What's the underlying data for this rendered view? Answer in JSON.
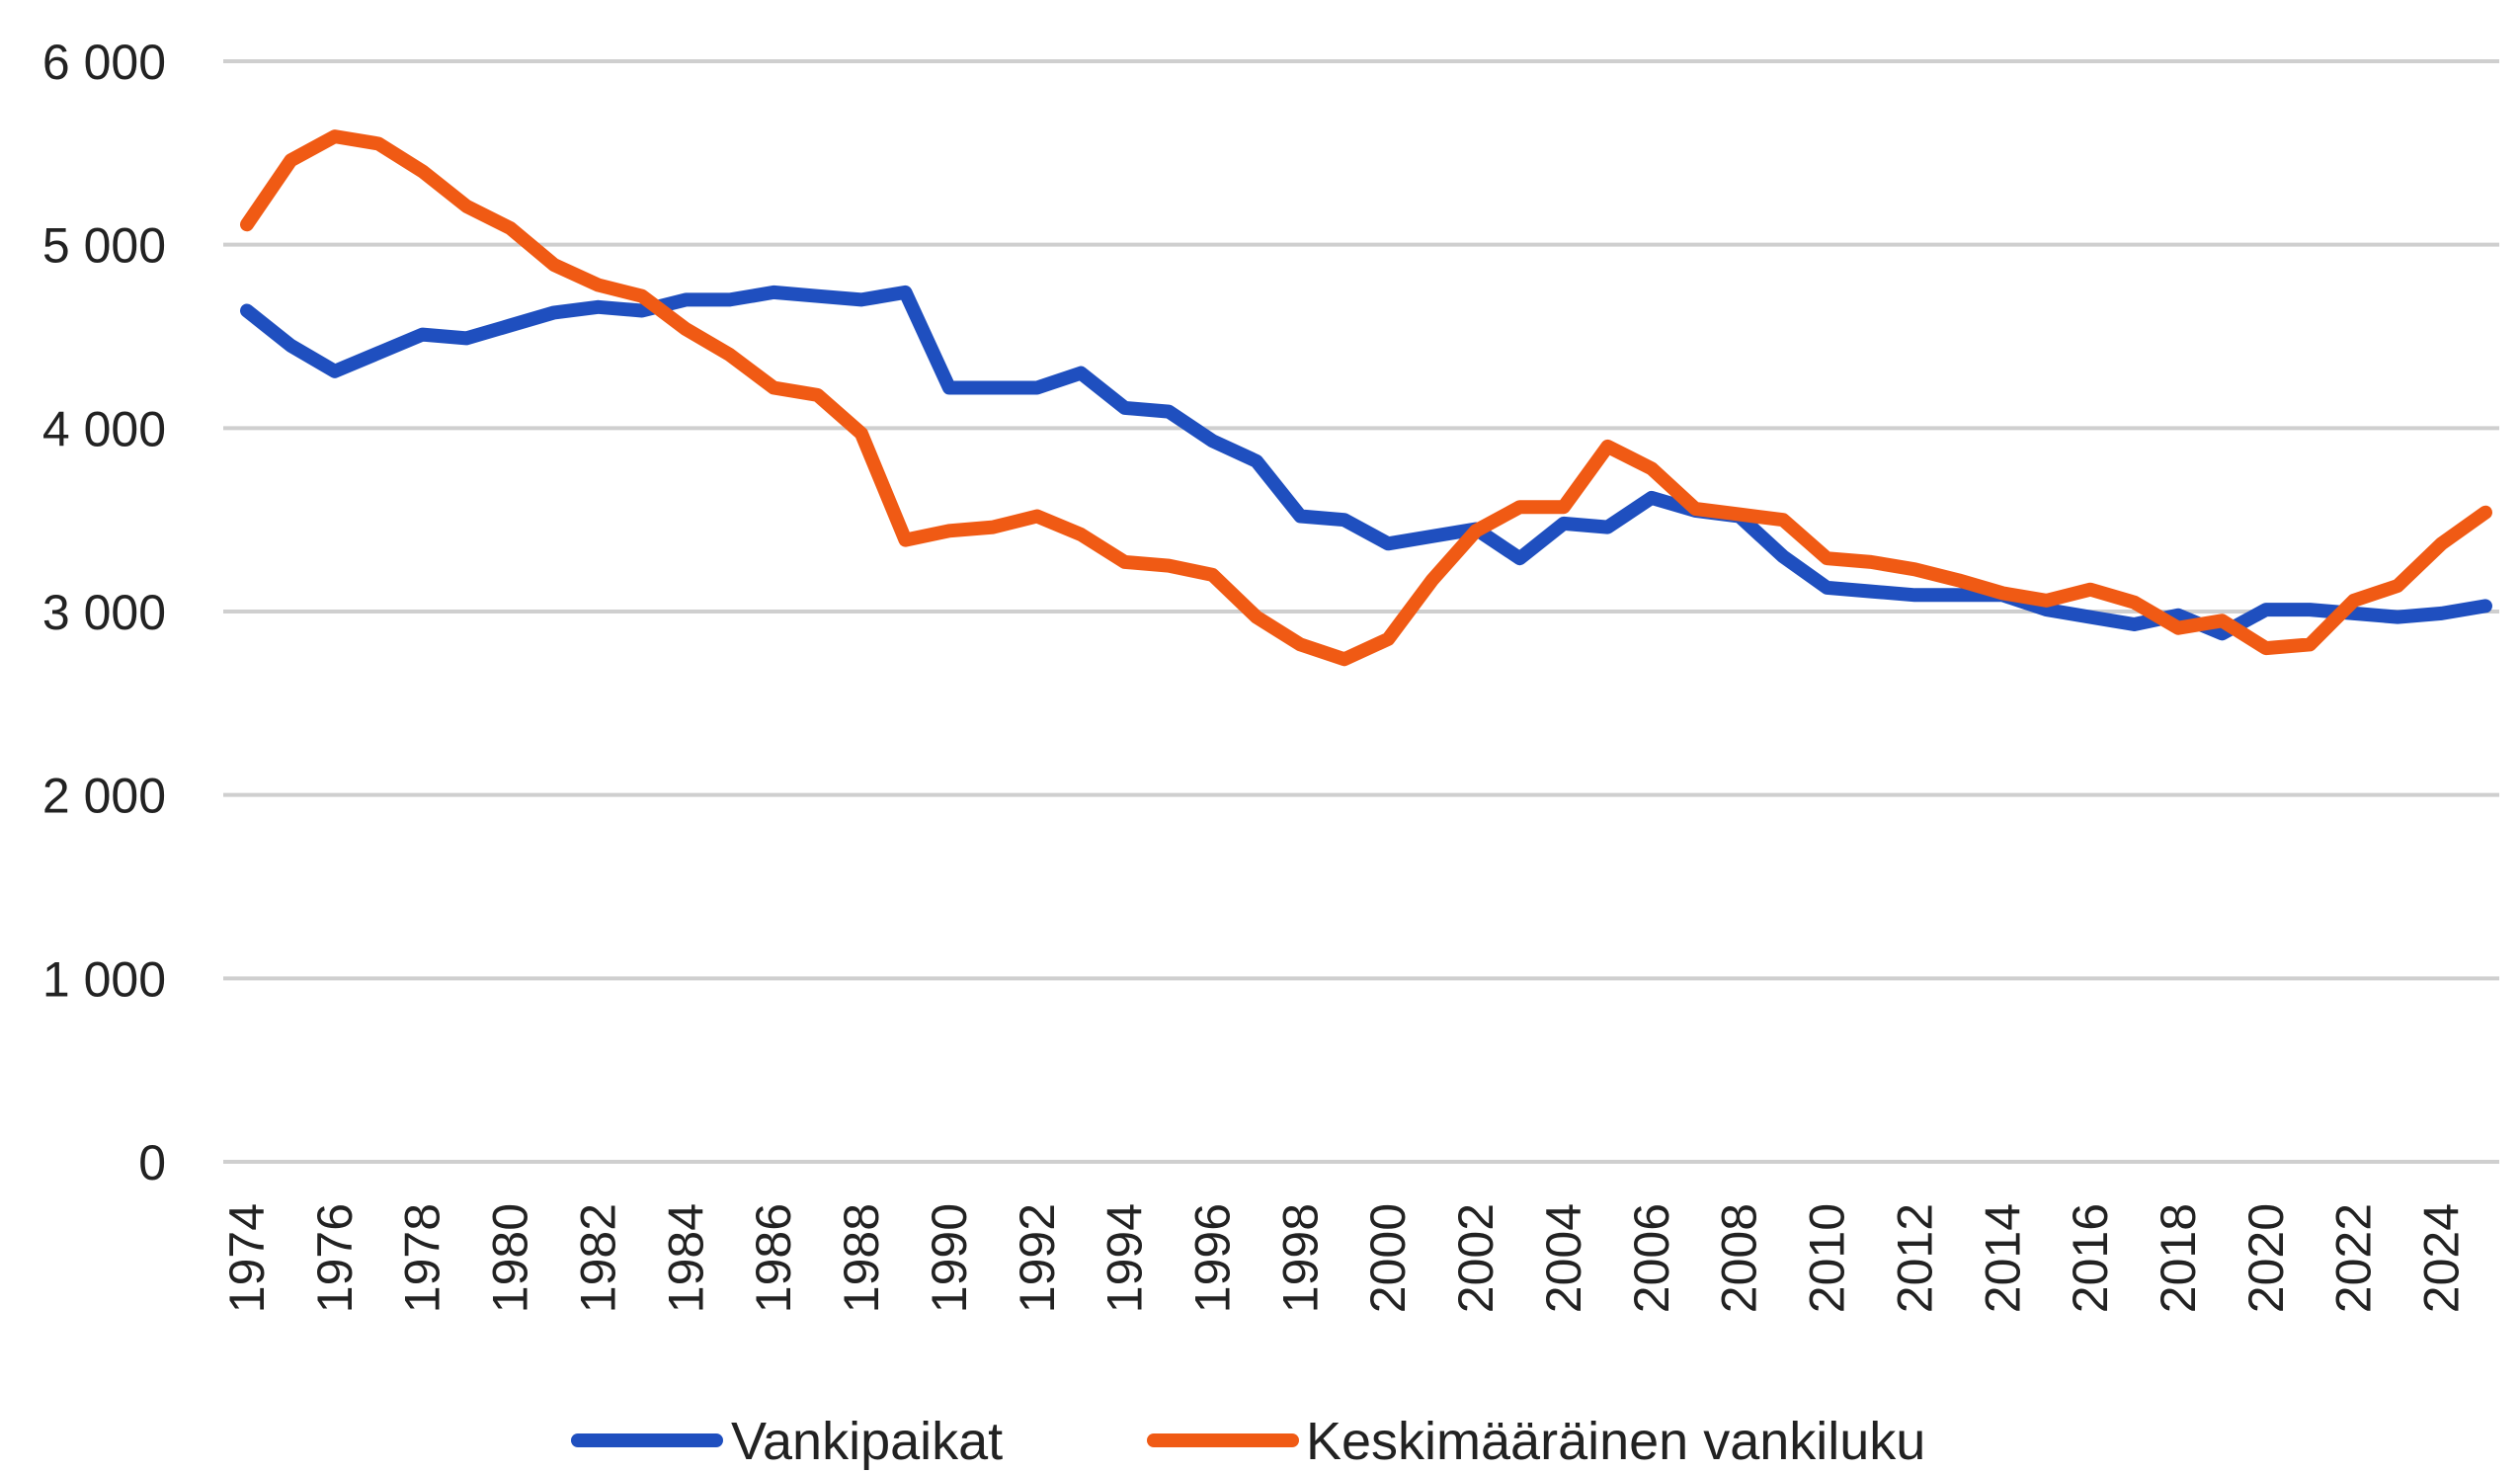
{
  "chart_data": {
    "type": "line",
    "title": "",
    "xlabel": "",
    "ylabel": "",
    "ylim": [
      0,
      6000
    ],
    "yticks": [
      0,
      1000,
      2000,
      3000,
      4000,
      5000,
      6000
    ],
    "ytick_labels": [
      "0",
      "1 000",
      "2 000",
      "3 000",
      "4 000",
      "5 000",
      "6 000"
    ],
    "x": [
      1974,
      1975,
      1976,
      1977,
      1978,
      1979,
      1980,
      1981,
      1982,
      1983,
      1984,
      1985,
      1986,
      1987,
      1988,
      1989,
      1990,
      1991,
      1992,
      1993,
      1994,
      1995,
      1996,
      1997,
      1998,
      1999,
      2000,
      2001,
      2002,
      2003,
      2004,
      2005,
      2006,
      2007,
      2008,
      2009,
      2010,
      2011,
      2012,
      2013,
      2014,
      2015,
      2016,
      2017,
      2018,
      2019,
      2020,
      2021,
      2022,
      2023,
      2024,
      2025
    ],
    "xtick_labels": [
      "1974",
      "1976",
      "1978",
      "1980",
      "1982",
      "1984",
      "1986",
      "1988",
      "1990",
      "1992",
      "1994",
      "1996",
      "1998",
      "2000",
      "2002",
      "2004",
      "2006",
      "2008",
      "2010",
      "2012",
      "2014",
      "2016",
      "2018",
      "2020",
      "2022",
      "2024"
    ],
    "grid": true,
    "legend_position": "bottom",
    "series": [
      {
        "name": "Vankipaikat",
        "color": "#1f4fbf",
        "values": [
          4640,
          4450,
          4310,
          4410,
          4510,
          4490,
          4560,
          4630,
          4660,
          4640,
          4700,
          4700,
          4740,
          4720,
          4700,
          4740,
          4220,
          4220,
          4220,
          4300,
          4110,
          4090,
          3930,
          3820,
          3520,
          3500,
          3370,
          3410,
          3450,
          3290,
          3480,
          3460,
          3620,
          3550,
          3520,
          3300,
          3130,
          3110,
          3090,
          3090,
          3090,
          3010,
          2970,
          2930,
          2980,
          2880,
          3010,
          3010,
          2990,
          2970,
          2990,
          3030
        ]
      },
      {
        "name": "Keskimääräinen vankiluku",
        "color": "#f05a14",
        "values": [
          5110,
          5460,
          5590,
          5550,
          5400,
          5210,
          5090,
          4890,
          4780,
          4720,
          4540,
          4400,
          4220,
          4180,
          3970,
          3390,
          3440,
          3460,
          3520,
          3420,
          3270,
          3250,
          3200,
          2970,
          2820,
          2740,
          2850,
          3170,
          3440,
          3570,
          3570,
          3900,
          3780,
          3560,
          3530,
          3500,
          3290,
          3270,
          3230,
          3170,
          3100,
          3060,
          3120,
          3050,
          2910,
          2950,
          2800,
          2820,
          3060,
          3140,
          3370,
          3540
        ]
      }
    ]
  }
}
